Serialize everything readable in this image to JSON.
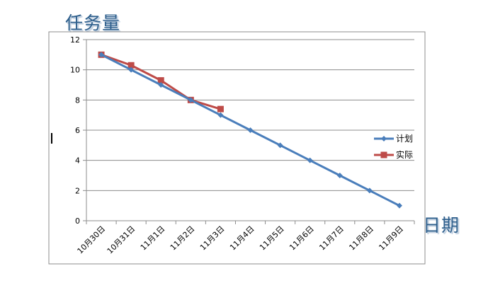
{
  "chart_data": {
    "type": "line",
    "ylabel": "任务量",
    "xlabel": "日期",
    "categories": [
      "10月30日",
      "10月31日",
      "11月1日",
      "11月2日",
      "11月3日",
      "11月4日",
      "11月5日",
      "11月6日",
      "11月7日",
      "11月8日",
      "11月9日"
    ],
    "ylim": [
      0,
      12
    ],
    "yticks": [
      0,
      2,
      4,
      6,
      8,
      10,
      12
    ],
    "grid": true,
    "legend_position": "right",
    "series": [
      {
        "name": "计划",
        "color": "#4a7ebb",
        "marker": "diamond",
        "values": [
          11,
          10,
          9,
          8,
          7,
          6,
          5,
          4,
          3,
          2,
          1
        ]
      },
      {
        "name": "实际",
        "color": "#be4b48",
        "marker": "square",
        "values": [
          11,
          10.3,
          9.3,
          8,
          7.4,
          null,
          null,
          null,
          null,
          null,
          null
        ]
      }
    ]
  }
}
